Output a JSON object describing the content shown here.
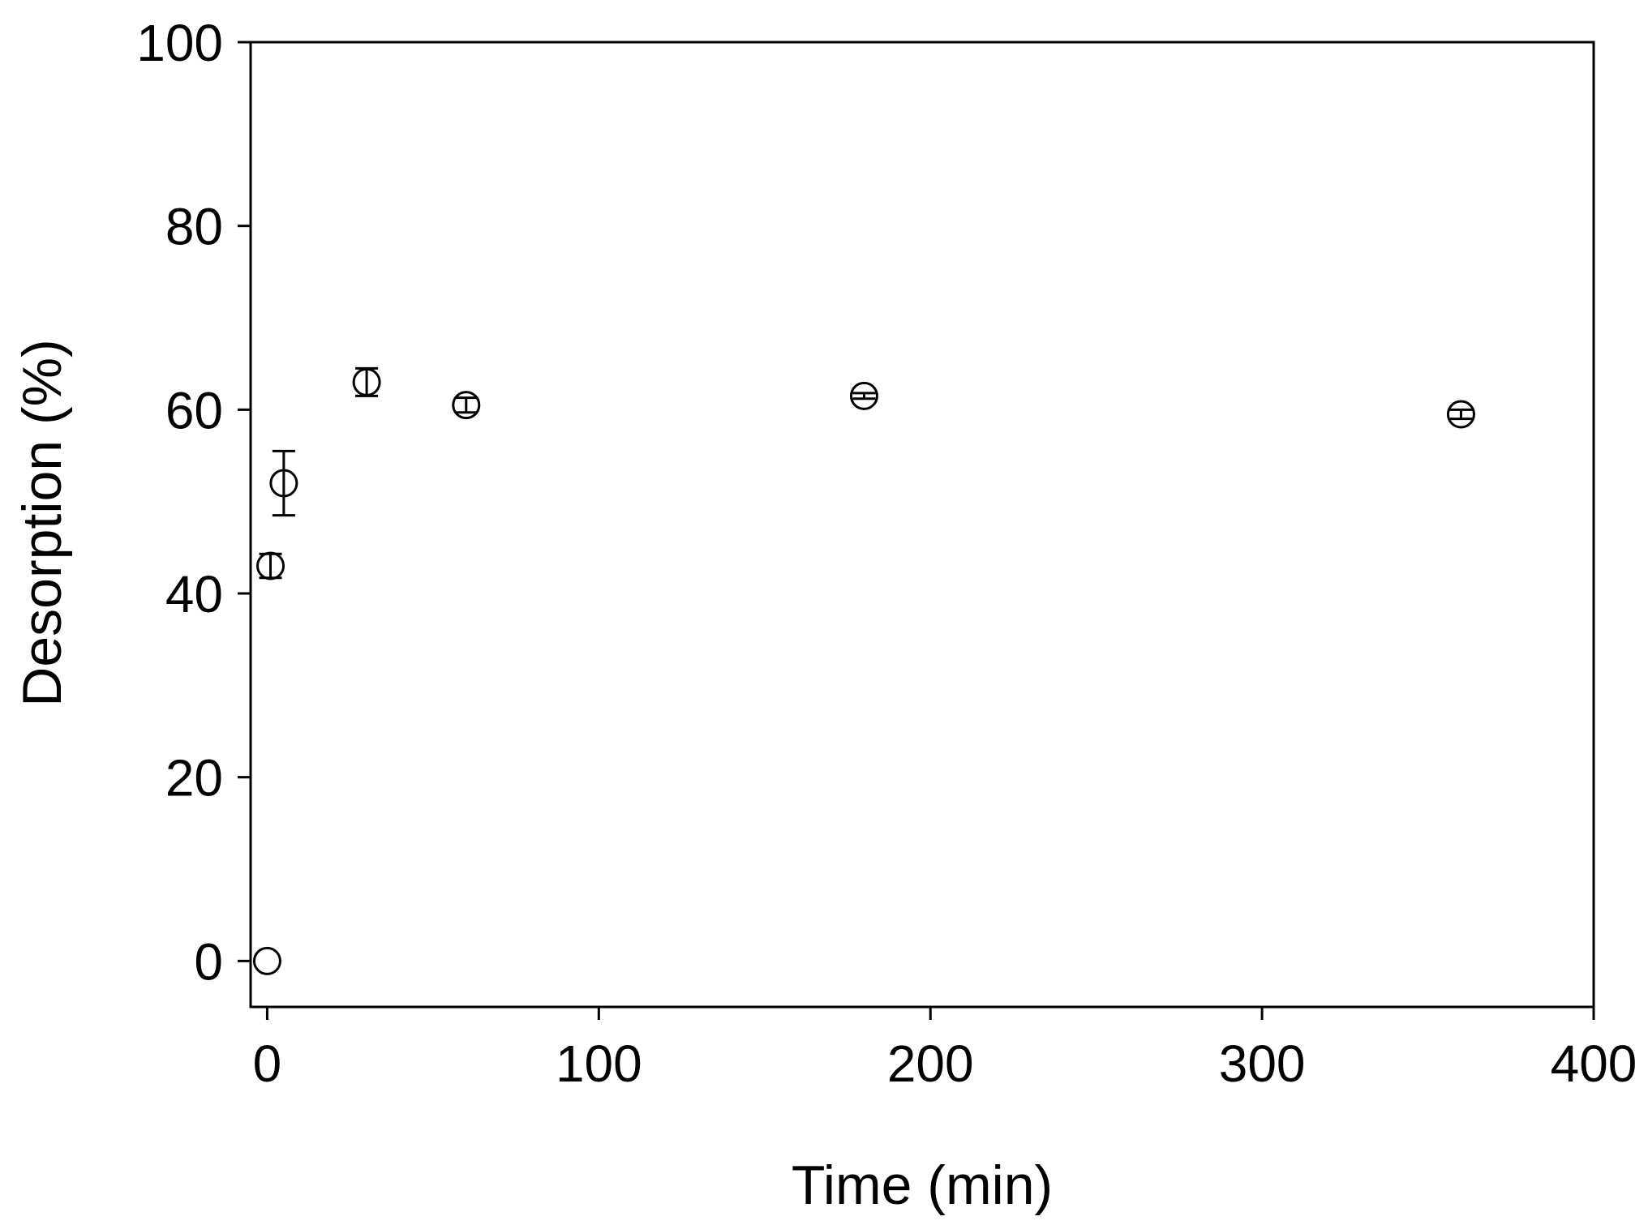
{
  "chart_data": {
    "type": "scatter",
    "title": "",
    "xlabel": "Time (min)",
    "ylabel": "Desorption (%)",
    "xlim": [
      -5,
      400
    ],
    "ylim": [
      -5,
      100
    ],
    "xticks": [
      0,
      100,
      200,
      300,
      400
    ],
    "yticks": [
      0,
      20,
      40,
      60,
      80,
      100
    ],
    "grid": false,
    "legend": "none",
    "marker": "open-circle",
    "colors": {
      "marker": "#000000",
      "axes": "#000000",
      "background": "#ffffff"
    },
    "series": [
      {
        "points": [
          {
            "x": 0,
            "y": 0,
            "err": 0
          },
          {
            "x": 1,
            "y": 43,
            "err": 1.3
          },
          {
            "x": 5,
            "y": 52,
            "err": 3.5
          },
          {
            "x": 30,
            "y": 63,
            "err": 1.5
          },
          {
            "x": 60,
            "y": 60.5,
            "err": 0.8
          },
          {
            "x": 180,
            "y": 61.5,
            "err": 0.3
          },
          {
            "x": 360,
            "y": 59.5,
            "err": 0.5
          }
        ]
      }
    ]
  }
}
